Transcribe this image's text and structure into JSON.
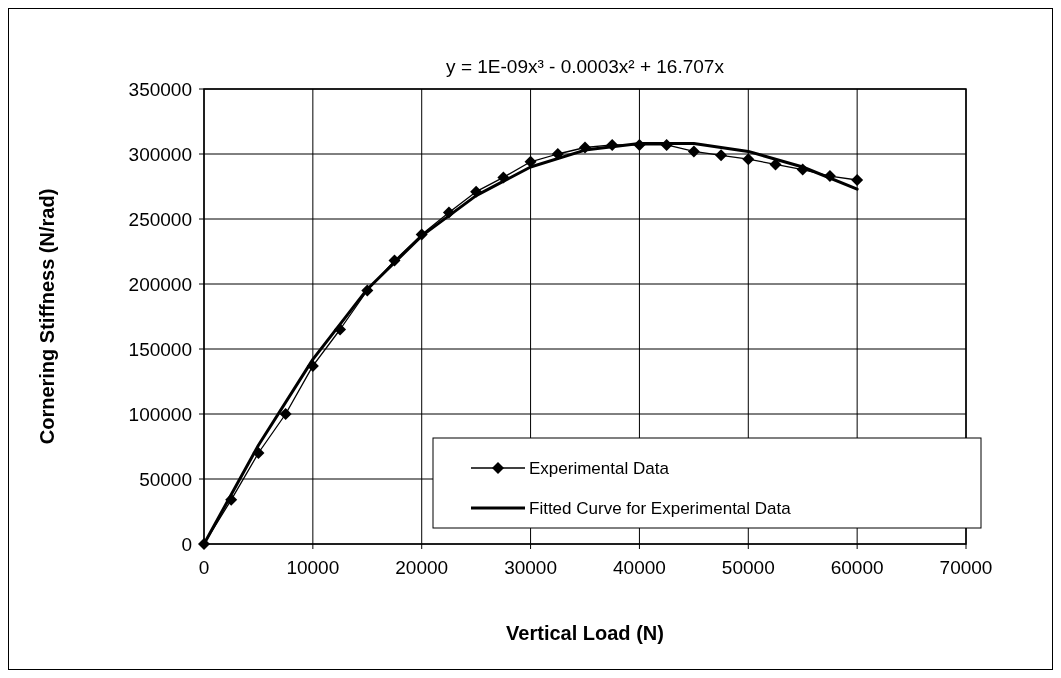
{
  "chart_data": {
    "type": "line",
    "title": "y = 1E-09x³ - 0.0003x² + 16.707x",
    "xlabel": "Vertical Load (N)",
    "ylabel": "Cornering Stiffness (N/rad)",
    "xlim": [
      0,
      70000
    ],
    "xticks": [
      0,
      10000,
      20000,
      30000,
      40000,
      50000,
      60000,
      70000
    ],
    "ylim": [
      0,
      350000
    ],
    "yticks": [
      0,
      50000,
      100000,
      150000,
      200000,
      250000,
      300000,
      350000
    ],
    "grid": true,
    "legend": "bottom right",
    "series": [
      {
        "name": "Experimental Data",
        "color": "#000000",
        "marker": "diamond",
        "x": [
          0,
          2500,
          5000,
          7500,
          10000,
          12500,
          15000,
          17500,
          20000,
          22500,
          25000,
          27500,
          30000,
          32500,
          35000,
          37500,
          40000,
          42500,
          45000,
          47500,
          50000,
          52500,
          55000,
          57500,
          60000
        ],
        "values": [
          0,
          34000,
          70000,
          100000,
          137000,
          165000,
          195000,
          218000,
          238000,
          255000,
          271000,
          282000,
          294000,
          300000,
          305000,
          307000,
          307000,
          307000,
          302000,
          299000,
          296000,
          292000,
          288000,
          283000,
          280000
        ]
      },
      {
        "name": "Fitted Curve for Experimental Data",
        "color": "#000000",
        "marker": "none",
        "x": [
          0,
          5000,
          10000,
          15000,
          20000,
          25000,
          30000,
          35000,
          40000,
          45000,
          50000,
          55000,
          60000
        ],
        "values": [
          0,
          76000,
          142000,
          196000,
          237000,
          268000,
          290000,
          303000,
          308000,
          308000,
          302000,
          290000,
          273000
        ]
      }
    ]
  }
}
